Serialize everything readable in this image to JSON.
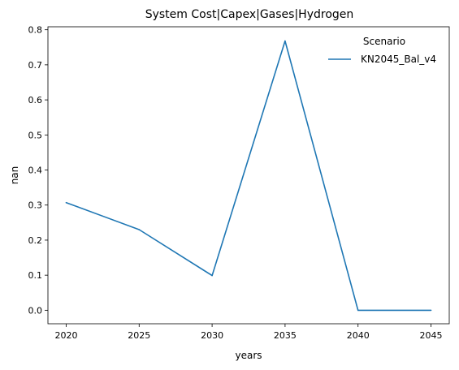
{
  "chart_data": {
    "type": "line",
    "title": "System Cost|Capex|Gases|Hydrogen",
    "xlabel": "years",
    "ylabel": "nan",
    "x": [
      2020,
      2025,
      2030,
      2035,
      2040,
      2045
    ],
    "xticks": [
      "2020",
      "2025",
      "2030",
      "2035",
      "2040",
      "2045"
    ],
    "yticks": [
      "0.0",
      "0.1",
      "0.2",
      "0.3",
      "0.4",
      "0.5",
      "0.6",
      "0.7",
      "0.8"
    ],
    "xlim": [
      2018.75,
      2046.25
    ],
    "ylim": [
      -0.0385,
      0.8085
    ],
    "grid": false,
    "legend": {
      "title": "Scenario",
      "placement": "top-right"
    },
    "series": [
      {
        "name": "KN2045_Bal_v4",
        "color": "#1f77b4",
        "values": [
          0.307,
          0.23,
          0.099,
          0.768,
          0.0,
          0.0
        ]
      }
    ]
  }
}
